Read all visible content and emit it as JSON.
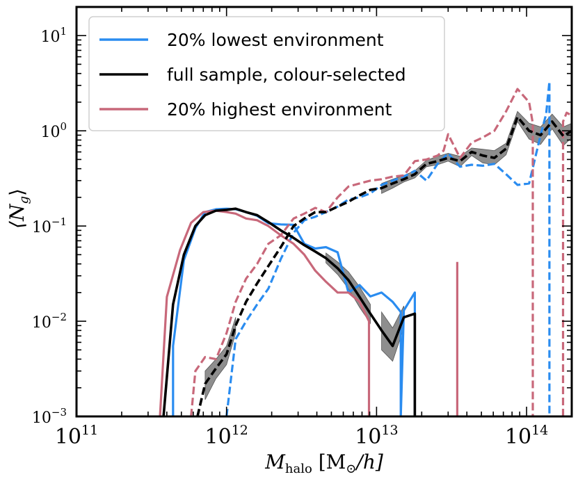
{
  "chart_data": {
    "type": "line",
    "xscale": "log",
    "yscale": "log",
    "xlim": [
      100000000000.0,
      200000000000000.0
    ],
    "ylim": [
      0.001,
      20
    ],
    "xlabel": {
      "main": "M",
      "sub": "halo",
      "rest": " [M",
      "rest_sub": "⊙",
      "rest_end": "/h]"
    },
    "ylabel": "⟨N",
    "ylabel_sub": "g",
    "ylabel_end": "⟩",
    "x_ticks": [
      {
        "value": 100000000000.0,
        "base": "10",
        "exp": "11"
      },
      {
        "value": 1000000000000.0,
        "base": "10",
        "exp": "12"
      },
      {
        "value": 10000000000000.0,
        "base": "10",
        "exp": "13"
      },
      {
        "value": 100000000000000.0,
        "base": "10",
        "exp": "14"
      }
    ],
    "y_ticks": [
      {
        "value": 0.001,
        "base": "10",
        "exp": "−3"
      },
      {
        "value": 0.01,
        "base": "10",
        "exp": "−2"
      },
      {
        "value": 0.1,
        "base": "10",
        "exp": "−1"
      },
      {
        "value": 1,
        "base": "10",
        "exp": "0"
      },
      {
        "value": 10,
        "base": "10",
        "exp": "1"
      }
    ],
    "grid": false,
    "legend_placement": "top-left",
    "legend": [
      {
        "label": "20% lowest environment",
        "color": "#2a8cf0"
      },
      {
        "label": "full sample, colour-selected",
        "color": "#000000"
      },
      {
        "label": "20% highest environment",
        "color": "#c8687a"
      }
    ],
    "series": [
      {
        "name": "full sample, colour-selected",
        "component": "central",
        "style": "solid",
        "color": "#000000",
        "x": [
          380000000000.0,
          440000000000.0,
          520000000000.0,
          620000000000.0,
          720000000000.0,
          850000000000.0,
          1000000000000.0,
          1150000000000.0,
          1350000000000.0,
          1600000000000.0,
          1900000000000.0,
          2300000000000.0,
          2800000000000.0,
          3300000000000.0,
          3900000000000.0,
          4600000000000.0,
          5500000000000.0,
          6500000000000.0,
          7700000000000.0,
          9100000000000.0,
          10800000000000.0,
          12800000000000.0,
          15200000000000.0,
          18000000000000.0,
          18000000000000.0
        ],
        "y": [
          0.001,
          0.015,
          0.05,
          0.1,
          0.13,
          0.145,
          0.148,
          0.152,
          0.14,
          0.13,
          0.11,
          0.09,
          0.075,
          0.063,
          0.054,
          0.046,
          0.036,
          0.027,
          0.018,
          0.012,
          0.008,
          0.0055,
          0.011,
          0.012,
          0.001
        ]
      },
      {
        "name": "full sample, colour-selected",
        "component": "satellite",
        "style": "dashed",
        "color": "#000000",
        "x": [
          640000000000.0,
          720000000000.0,
          850000000000.0,
          1000000000000.0,
          1150000000000.0,
          1350000000000.0,
          1600000000000.0,
          1900000000000.0,
          2300000000000.0,
          2800000000000.0,
          3300000000000.0,
          3900000000000.0,
          4600000000000.0,
          5500000000000.0,
          6500000000000.0,
          7700000000000.0,
          9100000000000.0,
          10800000000000.0,
          12800000000000.0,
          15200000000000.0,
          18000000000000.0,
          21500000000000.0,
          25500000000000.0,
          30000000000000.0,
          36000000000000.0,
          43000000000000.0,
          51000000000000.0,
          61000000000000.0,
          73000000000000.0,
          87000000000000.0,
          104000000000000.0,
          124000000000000.0,
          148000000000000.0,
          176000000000000.0,
          200000000000000.0
        ],
        "y": [
          0.001,
          0.0022,
          0.0032,
          0.0045,
          0.009,
          0.016,
          0.025,
          0.038,
          0.06,
          0.1,
          0.12,
          0.14,
          0.14,
          0.16,
          0.18,
          0.21,
          0.24,
          0.25,
          0.28,
          0.31,
          0.35,
          0.45,
          0.48,
          0.52,
          0.48,
          0.6,
          0.55,
          0.52,
          0.65,
          1.4,
          1.0,
          0.9,
          1.25,
          0.88,
          1.0
        ]
      },
      {
        "name": "20% lowest environment",
        "component": "central",
        "style": "solid",
        "color": "#2a8cf0",
        "x": [
          440000000000.0,
          440000000000.0,
          520000000000.0,
          620000000000.0,
          720000000000.0,
          850000000000.0,
          1000000000000.0,
          1150000000000.0,
          1350000000000.0,
          1600000000000.0,
          1900000000000.0,
          2300000000000.0,
          2800000000000.0,
          3300000000000.0,
          3900000000000.0,
          4600000000000.0,
          5500000000000.0,
          6500000000000.0,
          7700000000000.0,
          9100000000000.0,
          10800000000000.0,
          12800000000000.0,
          14500000000000.0,
          14500000000000.0,
          15200000000000.0,
          18000000000000.0,
          18000000000000.0
        ],
        "y": [
          0.001,
          0.0055,
          0.044,
          0.095,
          0.14,
          0.15,
          0.152,
          0.15,
          0.14,
          0.128,
          0.107,
          0.104,
          0.103,
          0.065,
          0.058,
          0.06,
          0.053,
          0.02,
          0.024,
          0.0182,
          0.02,
          0.016,
          0.0125,
          0.001,
          0.013,
          0.02,
          0.001
        ]
      },
      {
        "name": "20% lowest environment",
        "component": "satellite",
        "style": "dashed",
        "color": "#2a8cf0",
        "x": [
          1000000000000.0,
          1150000000000.0,
          1350000000000.0,
          1600000000000.0,
          1900000000000.0,
          2300000000000.0,
          2800000000000.0,
          3300000000000.0,
          3900000000000.0,
          4600000000000.0,
          5500000000000.0,
          6500000000000.0,
          7700000000000.0,
          9100000000000.0,
          10800000000000.0,
          12800000000000.0,
          15200000000000.0,
          18000000000000.0,
          21500000000000.0,
          25500000000000.0,
          30000000000000.0,
          36000000000000.0,
          43000000000000.0,
          51000000000000.0,
          61000000000000.0,
          73000000000000.0,
          87000000000000.0,
          104000000000000.0,
          124000000000000.0,
          135000000000000.0,
          142000000000000.0,
          142000000000000.0
        ],
        "y": [
          0.001,
          0.0065,
          0.01,
          0.015,
          0.022,
          0.045,
          0.085,
          0.115,
          0.125,
          0.14,
          0.16,
          0.19,
          0.2,
          0.22,
          0.27,
          0.3,
          0.33,
          0.38,
          0.3,
          0.45,
          0.58,
          0.42,
          0.44,
          0.43,
          0.45,
          0.35,
          0.27,
          0.28,
          0.9,
          1.5,
          3.3,
          0.001
        ]
      },
      {
        "name": "20% highest environment",
        "component": "central",
        "style": "solid",
        "color": "#c8687a",
        "x": [
          360000000000.0,
          400000000000.0,
          490000000000.0,
          580000000000.0,
          700000000000.0,
          850000000000.0,
          1000000000000.0,
          1150000000000.0,
          1350000000000.0,
          1600000000000.0,
          1900000000000.0,
          2300000000000.0,
          2800000000000.0,
          3300000000000.0,
          3900000000000.0,
          4600000000000.0,
          5500000000000.0,
          6500000000000.0,
          7700000000000.0,
          8900000000000.0,
          8900000000000.0
        ],
        "y": [
          0.001,
          0.018,
          0.056,
          0.108,
          0.14,
          0.145,
          0.14,
          0.135,
          0.12,
          0.115,
          0.1,
          0.08,
          0.065,
          0.05,
          0.034,
          0.026,
          0.02,
          0.02,
          0.016,
          0.01,
          0.001
        ]
      },
      {
        "name": "20% highest environment",
        "component": "central-spike",
        "style": "solid",
        "color": "#c8687a",
        "x": [
          34500000000000.0,
          34500000000000.0
        ],
        "y": [
          0.001,
          0.042
        ]
      },
      {
        "name": "20% highest environment",
        "component": "satellite",
        "style": "dashed",
        "color": "#c8687a",
        "x": [
          580000000000.0,
          620000000000.0,
          720000000000.0,
          850000000000.0,
          1000000000000.0,
          1150000000000.0,
          1350000000000.0,
          1600000000000.0,
          1900000000000.0,
          2300000000000.0,
          2800000000000.0,
          3300000000000.0,
          3900000000000.0,
          4600000000000.0,
          5500000000000.0,
          6500000000000.0,
          7700000000000.0,
          9100000000000.0,
          10800000000000.0,
          12800000000000.0,
          15200000000000.0,
          18000000000000.0,
          21500000000000.0,
          25500000000000.0,
          28000000000000.0,
          30000000000000.0,
          36000000000000.0,
          43000000000000.0,
          51000000000000.0,
          61000000000000.0,
          73000000000000.0,
          87000000000000.0,
          104000000000000.0,
          110000000000000.0,
          110000000000000.0
        ],
        "y": [
          0.001,
          0.003,
          0.0042,
          0.004,
          0.0075,
          0.016,
          0.028,
          0.04,
          0.065,
          0.08,
          0.12,
          0.135,
          0.155,
          0.14,
          0.2,
          0.26,
          0.28,
          0.3,
          0.31,
          0.33,
          0.34,
          0.48,
          0.5,
          0.55,
          0.62,
          0.92,
          0.52,
          0.75,
          0.85,
          1.0,
          1.6,
          2.75,
          2.0,
          1.2,
          0.001
        ]
      },
      {
        "name": "20% highest environment",
        "component": "satellite-tail",
        "style": "dashed",
        "color": "#c8687a",
        "x": [
          175000000000000.0,
          175000000000000.0,
          185000000000000.0,
          200000000000000.0
        ],
        "y": [
          0.001,
          1.25,
          1.55,
          1.45
        ]
      }
    ],
    "bands": [
      {
        "name": "full sample, colour-selected",
        "component": "central",
        "x": [
          10800000000000.0,
          12800000000000.0,
          15200000000000.0
        ],
        "y_low": [
          0.005,
          0.0038,
          0.0085
        ],
        "y_high": [
          0.0125,
          0.0085,
          0.0145
        ]
      },
      {
        "name": "full sample, colour-selected",
        "component": "central",
        "x": [
          4600000000000.0,
          5500000000000.0,
          6500000000000.0,
          7700000000000.0,
          9100000000000.0
        ],
        "y_low": [
          0.041,
          0.031,
          0.022,
          0.014,
          0.0095
        ],
        "y_high": [
          0.052,
          0.042,
          0.033,
          0.023,
          0.015
        ]
      },
      {
        "name": "full sample, colour-selected",
        "component": "satellite",
        "x": [
          720000000000.0,
          850000000000.0,
          1000000000000.0,
          1150000000000.0
        ],
        "y_low": [
          0.0015,
          0.0025,
          0.0035,
          0.0075
        ],
        "y_high": [
          0.003,
          0.004,
          0.0055,
          0.011
        ]
      },
      {
        "name": "full sample, colour-selected",
        "component": "satellite",
        "x": [
          10800000000000.0,
          12800000000000.0,
          15200000000000.0,
          18000000000000.0,
          21500000000000.0,
          25500000000000.0,
          30000000000000.0,
          36000000000000.0,
          43000000000000.0,
          51000000000000.0,
          61000000000000.0,
          73000000000000.0,
          87000000000000.0,
          104000000000000.0,
          124000000000000.0,
          148000000000000.0,
          176000000000000.0,
          200000000000000.0
        ],
        "y_low": [
          0.22,
          0.25,
          0.29,
          0.32,
          0.42,
          0.44,
          0.48,
          0.42,
          0.55,
          0.46,
          0.44,
          0.56,
          1.25,
          0.82,
          0.72,
          1.05,
          0.7,
          0.85
        ],
        "y_high": [
          0.28,
          0.31,
          0.34,
          0.38,
          0.49,
          0.54,
          0.58,
          0.54,
          0.66,
          0.64,
          0.62,
          0.74,
          1.6,
          1.2,
          1.1,
          1.5,
          1.1,
          1.2
        ]
      }
    ]
  }
}
